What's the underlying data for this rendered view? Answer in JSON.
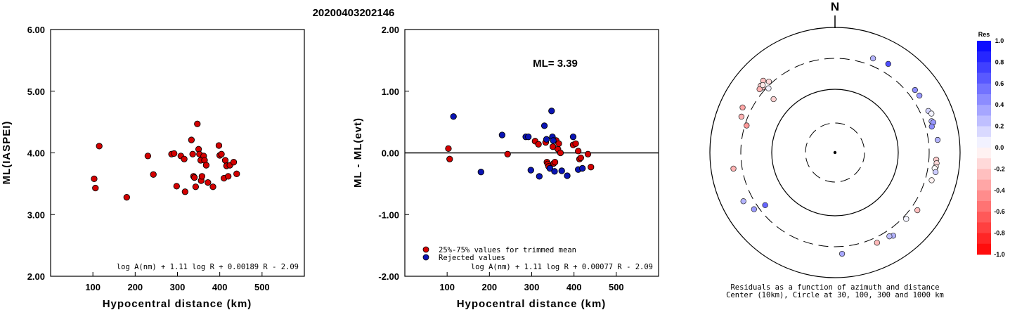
{
  "title": "20200403202146",
  "chart_data": [
    {
      "type": "scatter",
      "xlabel": "Hypocentral distance (km)",
      "ylabel": "ML(IASPEI)",
      "xlim": [
        0,
        600
      ],
      "ylim": [
        2.0,
        6.0
      ],
      "xticks": [
        "100",
        "200",
        "300",
        "400",
        "500"
      ],
      "yticks": [
        "2.00",
        "3.00",
        "4.00",
        "5.00",
        "6.00"
      ],
      "formula": "log A(nm) + 1.11 log R + 0.00189 R - 2.09",
      "points": [
        [
          103,
          3.58
        ],
        [
          106,
          3.43
        ],
        [
          115,
          4.11
        ],
        [
          180,
          3.28
        ],
        [
          230,
          3.95
        ],
        [
          243,
          3.65
        ],
        [
          286,
          3.98
        ],
        [
          292,
          3.99
        ],
        [
          298,
          3.46
        ],
        [
          308,
          3.95
        ],
        [
          316,
          3.9
        ],
        [
          318,
          3.37
        ],
        [
          333,
          4.21
        ],
        [
          336,
          3.98
        ],
        [
          338,
          3.62
        ],
        [
          340,
          3.6
        ],
        [
          343,
          3.45
        ],
        [
          347,
          4.47
        ],
        [
          350,
          4.06
        ],
        [
          352,
          3.98
        ],
        [
          355,
          3.88
        ],
        [
          356,
          3.55
        ],
        [
          358,
          3.62
        ],
        [
          362,
          3.95
        ],
        [
          364,
          3.88
        ],
        [
          368,
          3.8
        ],
        [
          372,
          3.52
        ],
        [
          384,
          3.45
        ],
        [
          398,
          4.12
        ],
        [
          400,
          3.96
        ],
        [
          404,
          3.98
        ],
        [
          410,
          3.59
        ],
        [
          413,
          3.88
        ],
        [
          416,
          3.79
        ],
        [
          420,
          3.62
        ],
        [
          424,
          3.8
        ],
        [
          433,
          3.85
        ],
        [
          440,
          3.66
        ]
      ]
    },
    {
      "type": "scatter",
      "xlabel": "Hypocentral distance (km)",
      "ylabel": "ML - ML(evt)",
      "xlim": [
        0,
        600
      ],
      "ylim": [
        -2.0,
        2.0
      ],
      "xticks": [
        "100",
        "200",
        "300",
        "400",
        "500"
      ],
      "yticks": [
        "-2.00",
        "-1.00",
        "0.00",
        "1.00",
        "2.00"
      ],
      "ml_label": "ML= 3.39",
      "formula": "log A(nm) + 1.11 log R + 0.00077 R - 2.09",
      "legend": {
        "trimmed": "25%-75% values for trimmed mean",
        "rejected": "Rejected values"
      },
      "series": [
        {
          "name": "25%-75% values for trimmed mean",
          "color": "#d40000",
          "points": [
            [
              103,
              0.07
            ],
            [
              106,
              -0.1
            ],
            [
              243,
              -0.02
            ],
            [
              308,
              0.19
            ],
            [
              316,
              0.14
            ],
            [
              333,
              0.17
            ],
            [
              336,
              -0.15
            ],
            [
              338,
              -0.18
            ],
            [
              340,
              -0.22
            ],
            [
              350,
              0.1
            ],
            [
              352,
              -0.17
            ],
            [
              355,
              -0.15
            ],
            [
              358,
              0.2
            ],
            [
              362,
              0.06
            ],
            [
              364,
              0.15
            ],
            [
              368,
              0.0
            ],
            [
              398,
              0.13
            ],
            [
              404,
              0.15
            ],
            [
              410,
              0.03
            ],
            [
              413,
              -0.1
            ],
            [
              416,
              -0.08
            ],
            [
              433,
              -0.02
            ],
            [
              440,
              -0.23
            ]
          ]
        },
        {
          "name": "Rejected values",
          "color": "#0a14b4",
          "points": [
            [
              115,
              0.59
            ],
            [
              180,
              -0.31
            ],
            [
              230,
              0.29
            ],
            [
              286,
              0.26
            ],
            [
              292,
              0.26
            ],
            [
              298,
              -0.28
            ],
            [
              318,
              -0.38
            ],
            [
              330,
              0.44
            ],
            [
              335,
              0.22
            ],
            [
              343,
              -0.25
            ],
            [
              347,
              0.68
            ],
            [
              349,
              0.26
            ],
            [
              351,
              0.2
            ],
            [
              354,
              -0.3
            ],
            [
              371,
              -0.29
            ],
            [
              384,
              -0.37
            ],
            [
              398,
              0.26
            ],
            [
              410,
              -0.27
            ],
            [
              420,
              -0.25
            ]
          ]
        }
      ]
    },
    {
      "type": "polar-scatter",
      "north_label": "N",
      "caption_line1": "Residuals as a function of azimuth and distance",
      "caption_line2": "Center (10km), Circle at 30, 100, 300 and 1000 km",
      "colorbar_title": "Res",
      "colorbar_ticks": [
        "1.0",
        "0.8",
        "0.6",
        "0.4",
        "0.2",
        "0.0",
        "-0.2",
        "-0.4",
        "-0.6",
        "-0.8",
        "-1.0"
      ],
      "points": [
        {
          "az": 315,
          "dist": 420,
          "res": -0.25
        },
        {
          "az": 312,
          "dist": 395,
          "res": -0.2
        },
        {
          "az": 317,
          "dist": 355,
          "res": -0.15
        },
        {
          "az": 312,
          "dist": 360,
          "res": -0.22
        },
        {
          "az": 310,
          "dist": 375,
          "res": -0.3
        },
        {
          "az": 313,
          "dist": 380,
          "res": -0.1
        },
        {
          "az": 314,
          "dist": 300,
          "res": 0.05
        },
        {
          "az": 311,
          "dist": 200,
          "res": -0.18
        },
        {
          "az": 296,
          "dist": 440,
          "res": -0.35
        },
        {
          "az": 291,
          "dist": 400,
          "res": -0.3
        },
        {
          "az": 287,
          "dist": 300,
          "res": -0.4
        },
        {
          "az": 261,
          "dist": 440,
          "res": -0.3
        },
        {
          "az": 22,
          "dist": 420,
          "res": 0.3
        },
        {
          "az": 31,
          "dist": 450,
          "res": 0.7
        },
        {
          "az": 52,
          "dist": 420,
          "res": 0.45
        },
        {
          "az": 56,
          "dist": 425,
          "res": 0.4
        },
        {
          "az": 66,
          "dist": 430,
          "res": 0.18
        },
        {
          "az": 68,
          "dist": 460,
          "res": 0.05
        },
        {
          "az": 72,
          "dist": 420,
          "res": 0.3
        },
        {
          "az": 73,
          "dist": 440,
          "res": 0.4
        },
        {
          "az": 75,
          "dist": 400,
          "res": 0.45
        },
        {
          "az": 83,
          "dist": 450,
          "res": 0.3
        },
        {
          "az": 94,
          "dist": 420,
          "res": -0.2
        },
        {
          "az": 96,
          "dist": 430,
          "res": -0.15
        },
        {
          "az": 98,
          "dist": 425,
          "res": -0.1
        },
        {
          "az": 99,
          "dist": 410,
          "res": 0.0
        },
        {
          "az": 101,
          "dist": 435,
          "res": 0.2
        },
        {
          "az": 106,
          "dist": 405,
          "res": -0.05
        },
        {
          "az": 125,
          "dist": 405,
          "res": -0.25
        },
        {
          "az": 133,
          "dist": 360,
          "res": 0.05
        },
        {
          "az": 145,
          "dist": 420,
          "res": 0.3
        },
        {
          "az": 147,
          "dist": 395,
          "res": 0.25
        },
        {
          "az": 155,
          "dist": 390,
          "res": -0.28
        },
        {
          "az": 176,
          "dist": 420,
          "res": 0.35
        },
        {
          "az": 233,
          "dist": 250,
          "res": 0.6
        },
        {
          "az": 235,
          "dist": 380,
          "res": 0.4
        },
        {
          "az": 242,
          "dist": 455,
          "res": 0.3
        }
      ]
    }
  ]
}
